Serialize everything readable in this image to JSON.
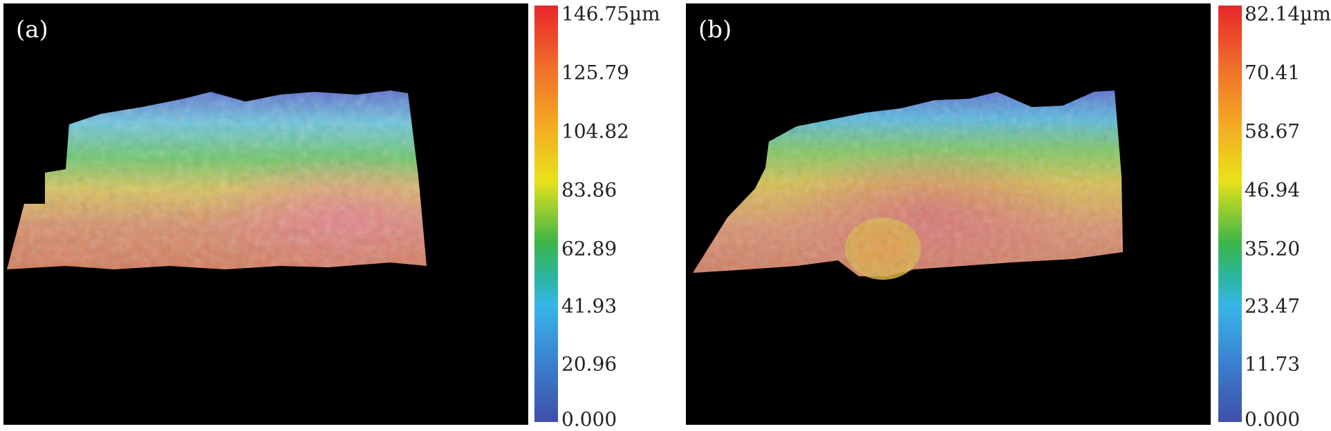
{
  "panels": [
    {
      "label": "(a)",
      "colorbar_ticks": [
        "146.75µm",
        "125.79",
        "104.82",
        "83.86",
        "62.89",
        "41.93",
        "20.96",
        "0.000"
      ],
      "colorbar_colors": [
        "#e8262a",
        "#f06a2a",
        "#f5a623",
        "#e8e21a",
        "#3cb54a",
        "#37b6e8",
        "#3a7fd0",
        "#3f4fa8"
      ]
    },
    {
      "label": "(b)",
      "colorbar_ticks": [
        "82.14µm",
        "70.41",
        "58.67",
        "46.94",
        "35.20",
        "23.47",
        "11.73",
        "0.000"
      ],
      "colorbar_colors": [
        "#e8262a",
        "#f06a2a",
        "#f5a623",
        "#e8e21a",
        "#3cb54a",
        "#37b6e8",
        "#3a7fd0",
        "#3f4fa8"
      ]
    }
  ]
}
